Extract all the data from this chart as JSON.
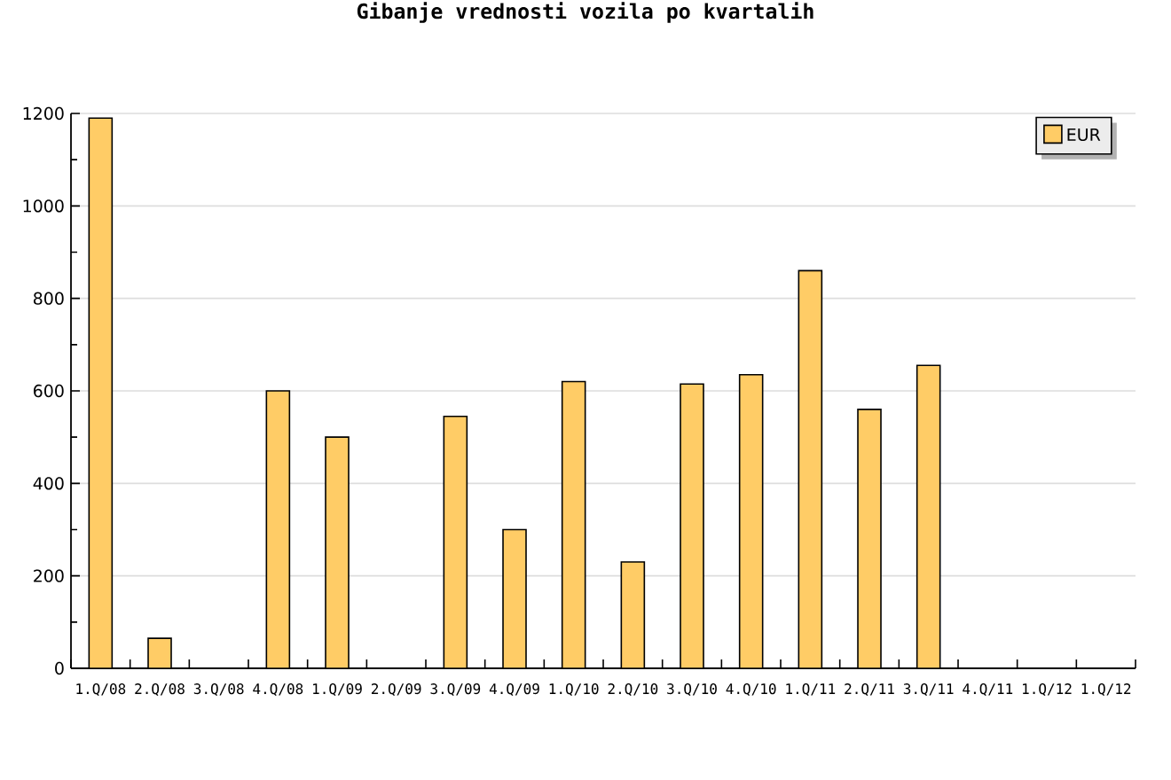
{
  "chart_data": {
    "type": "bar",
    "title": "Gibanje vrednosti vozila po kvartalih",
    "categories": [
      "1.Q/08",
      "2.Q/08",
      "3.Q/08",
      "4.Q/08",
      "1.Q/09",
      "2.Q/09",
      "3.Q/09",
      "4.Q/09",
      "1.Q/10",
      "2.Q/10",
      "3.Q/10",
      "4.Q/10",
      "1.Q/11",
      "2.Q/11",
      "3.Q/11",
      "4.Q/11",
      "1.Q/12",
      "1.Q/12"
    ],
    "series": [
      {
        "name": "EUR",
        "color": "#ffcc66",
        "values": [
          1190,
          65,
          null,
          600,
          500,
          null,
          545,
          300,
          620,
          230,
          615,
          635,
          860,
          560,
          655,
          null,
          null,
          null
        ]
      }
    ],
    "ylim": [
      0,
      1200
    ],
    "yticks": [
      0,
      {
        "value": 100,
        "label": null
      },
      200,
      {
        "value": 300,
        "label": null
      },
      400,
      {
        "value": 500,
        "label": null
      },
      600,
      {
        "value": 700,
        "label": null
      },
      800,
      {
        "value": 900,
        "label": null
      },
      1000,
      {
        "value": 1100,
        "label": null
      },
      1200
    ],
    "grid": "y",
    "legend": "top right"
  }
}
